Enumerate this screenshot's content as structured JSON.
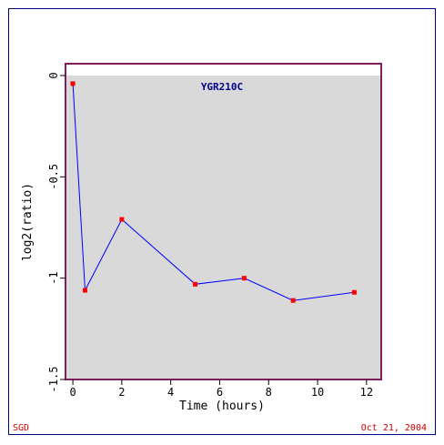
{
  "chart_data": {
    "type": "line",
    "title": "YGR210C",
    "xlabel": "Time (hours)",
    "ylabel": "log2(ratio)",
    "xlim": [
      -0.3,
      12.6
    ],
    "ylim": [
      -1.5,
      0
    ],
    "xticks": [
      0,
      2,
      4,
      6,
      8,
      10,
      12
    ],
    "yticks": [
      0,
      -0.5,
      -1,
      -1.5
    ],
    "xtick_labels": [
      "0",
      "2",
      "4",
      "6",
      "8",
      "10",
      "12"
    ],
    "ytick_labels": [
      "0",
      "-0.5",
      "-1",
      "-1.5"
    ],
    "grid": false,
    "series": [
      {
        "x": [
          0,
          0.5,
          2,
          5,
          7,
          9,
          11.5
        ],
        "y": [
          -0.04,
          -1.06,
          -0.71,
          -1.03,
          -1.0,
          -1.11,
          -1.07
        ]
      }
    ],
    "colors": {
      "line": "#0000ff",
      "marker": "#ff0000",
      "plot_background": "#d9d9d9",
      "plot_border": "#7f1f5f",
      "outer_border": "#00008b",
      "title": "#00008b",
      "footer": "#cc0000"
    }
  },
  "footer": {
    "left": "SGD",
    "right": "Oct 21, 2004"
  }
}
